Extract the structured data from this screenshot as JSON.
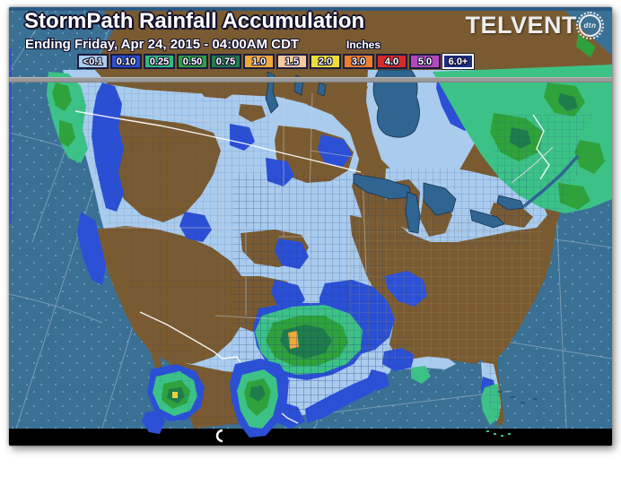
{
  "header": {
    "title": "StormPath Rainfall Accumulation",
    "subtitle": "Ending Friday, Apr 24, 2015 - 04:00AM CDT",
    "logo_text": "TELVENT",
    "logo_badge": "dtn"
  },
  "legend": {
    "units_label": "Inches",
    "items": [
      {
        "label": "<0.1",
        "color": "#A9CBEE"
      },
      {
        "label": "0.10",
        "color": "#2B50D6"
      },
      {
        "label": "0.25",
        "color": "#35B87E"
      },
      {
        "label": "0.50",
        "color": "#2F9E42"
      },
      {
        "label": "0.75",
        "color": "#1F7C4B"
      },
      {
        "label": "1.0",
        "color": "#EFA93B"
      },
      {
        "label": "1.5",
        "color": "#F6C9A0"
      },
      {
        "label": "2.0",
        "color": "#EBDD3A"
      },
      {
        "label": "3.0",
        "color": "#EE7F2D"
      },
      {
        "label": "4.0",
        "color": "#D32B2B"
      },
      {
        "label": "5.0",
        "color": "#B447BE"
      },
      {
        "label": "6.0+",
        "color": "#1B2D85",
        "border": "#FFFFFF"
      }
    ]
  },
  "map": {
    "palette": {
      "ocean": "#3B7095",
      "ocean_dark": "#2C5B85",
      "land": "#7A5B31",
      "rain_trace": "#A9CBEE",
      "rain_010": "#2B50D6",
      "rain_025": "#3CC287",
      "rain_050": "#2FA23C",
      "rain_075": "#1F7C4B",
      "rain_100": "#EFA93B",
      "rain_core": "#E8D23C",
      "lake": "#2F6590",
      "border_national": "#FFFFFF",
      "bottom_bar": "#000000"
    }
  }
}
